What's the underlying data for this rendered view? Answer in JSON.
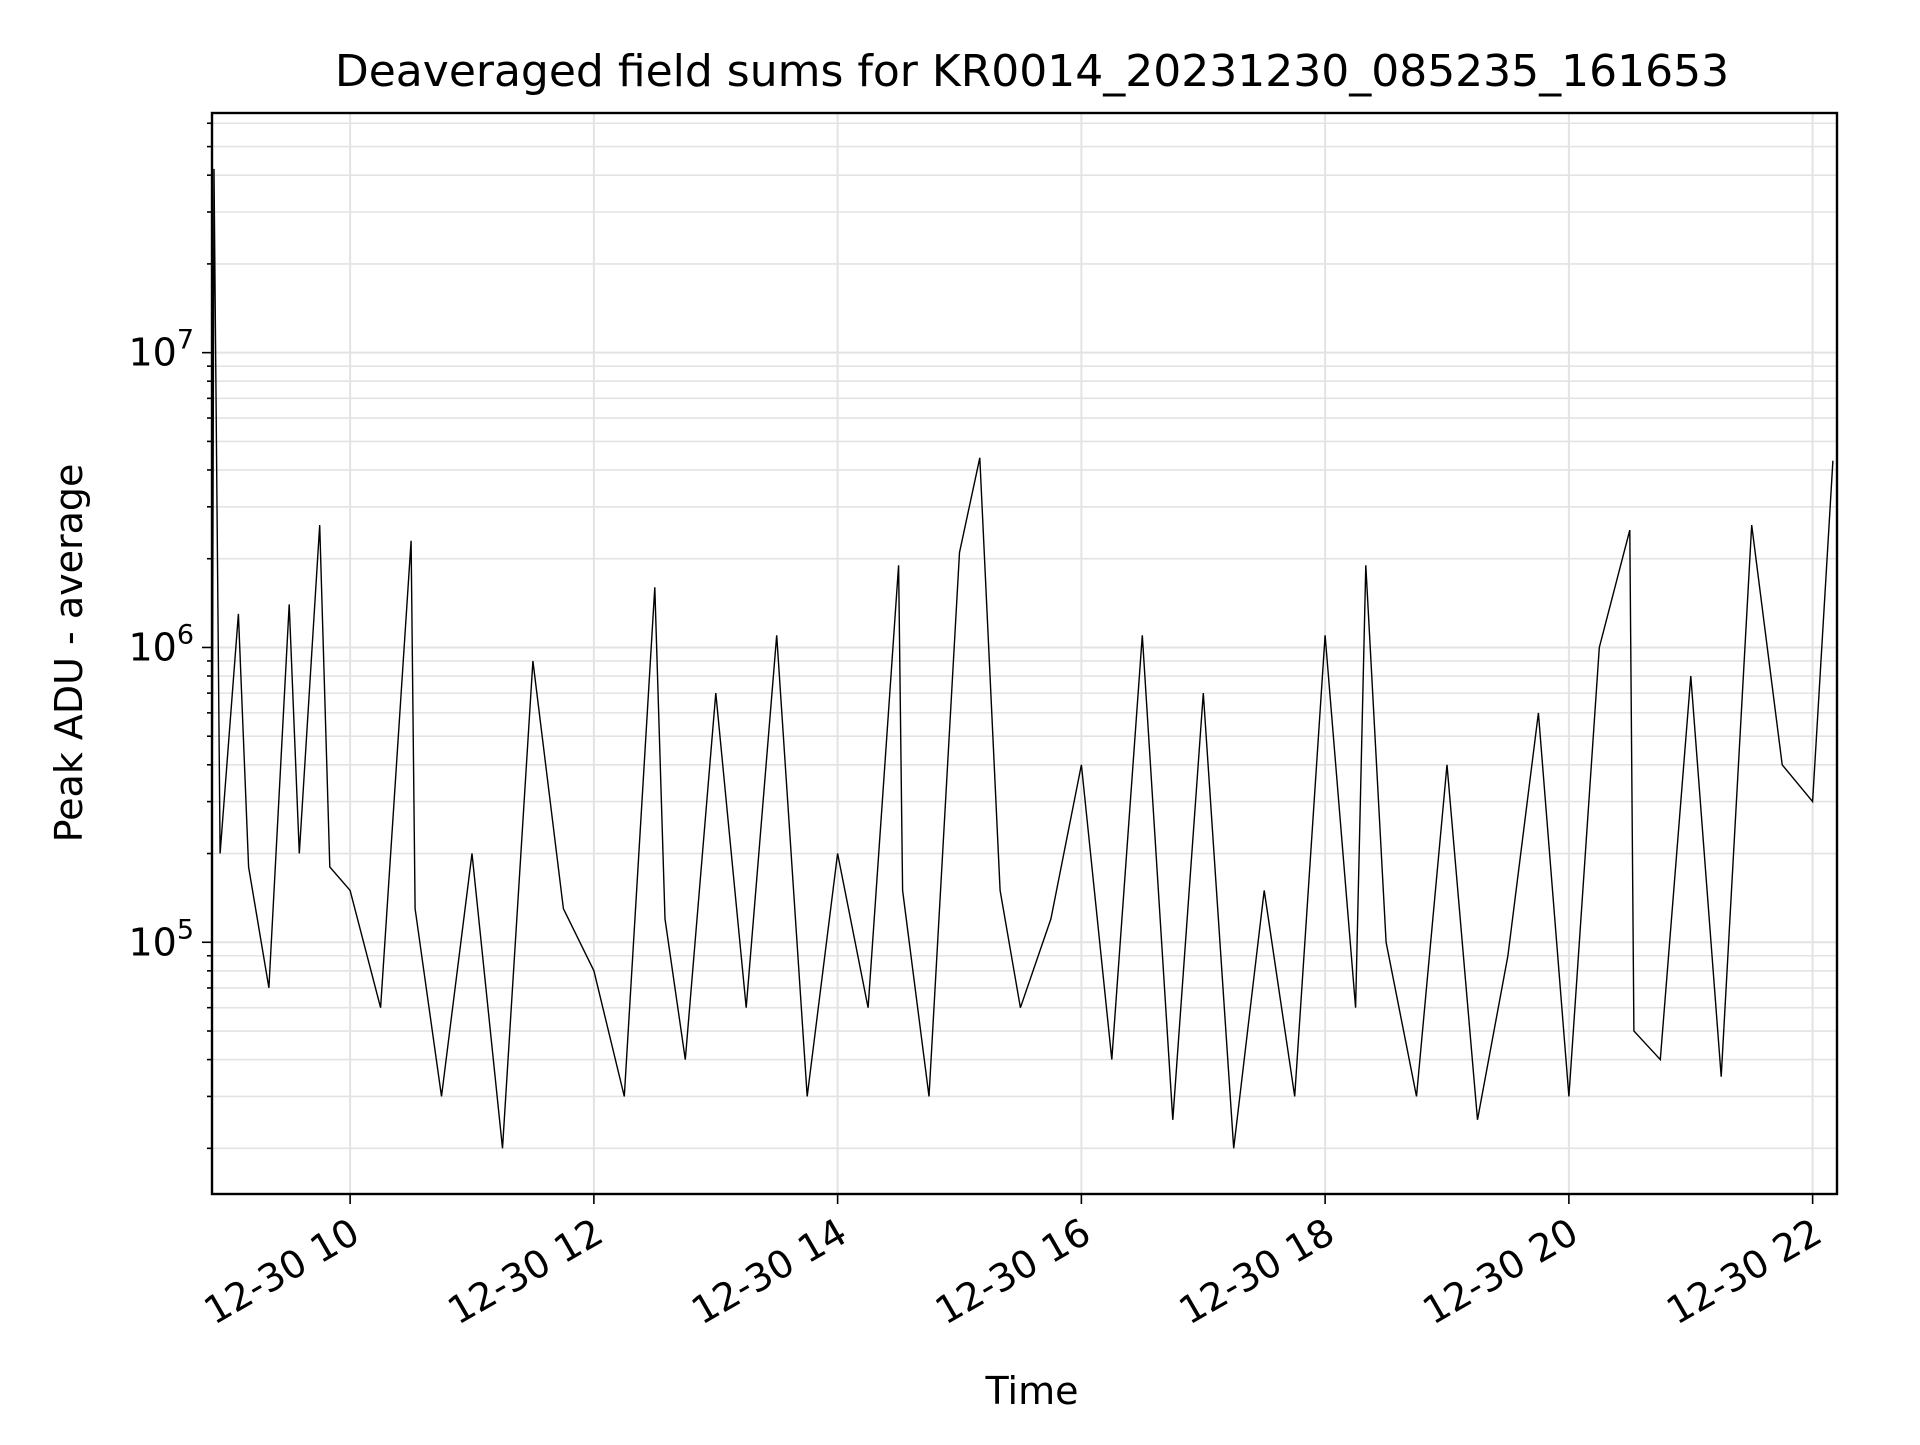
{
  "chart_data": {
    "type": "line",
    "title": "Deaveraged field sums for KR0014_20231230_085235_161653",
    "xlabel": "Time",
    "ylabel": "Peak ADU - average",
    "yscale": "log",
    "grid": true,
    "xlim": [
      "2023-12-30 08:52",
      "2023-12-30 22:12"
    ],
    "ylim": [
      14000,
      65000000
    ],
    "x_ticks": [
      {
        "value": "2023-12-30 10:00",
        "label": "12-30 10"
      },
      {
        "value": "2023-12-30 12:00",
        "label": "12-30 12"
      },
      {
        "value": "2023-12-30 14:00",
        "label": "12-30 14"
      },
      {
        "value": "2023-12-30 16:00",
        "label": "12-30 16"
      },
      {
        "value": "2023-12-30 18:00",
        "label": "12-30 18"
      },
      {
        "value": "2023-12-30 20:00",
        "label": "12-30 20"
      },
      {
        "value": "2023-12-30 22:00",
        "label": "12-30 22"
      }
    ],
    "y_ticks": [
      {
        "value": 100000,
        "base": "10",
        "exp": "5"
      },
      {
        "value": 1000000,
        "base": "10",
        "exp": "6"
      },
      {
        "value": 10000000,
        "base": "10",
        "exp": "7"
      }
    ],
    "series": [
      {
        "color": "#000000",
        "x": [
          "2023-12-30 08:52",
          "2023-12-30 08:53",
          "2023-12-30 08:56",
          "2023-12-30 09:05",
          "2023-12-30 09:10",
          "2023-12-30 09:20",
          "2023-12-30 09:30",
          "2023-12-30 09:35",
          "2023-12-30 09:45",
          "2023-12-30 09:50",
          "2023-12-30 10:00",
          "2023-12-30 10:15",
          "2023-12-30 10:30",
          "2023-12-30 10:32",
          "2023-12-30 10:45",
          "2023-12-30 11:00",
          "2023-12-30 11:15",
          "2023-12-30 11:30",
          "2023-12-30 11:45",
          "2023-12-30 12:00",
          "2023-12-30 12:15",
          "2023-12-30 12:30",
          "2023-12-30 12:35",
          "2023-12-30 12:45",
          "2023-12-30 13:00",
          "2023-12-30 13:15",
          "2023-12-30 13:30",
          "2023-12-30 13:45",
          "2023-12-30 14:00",
          "2023-12-30 14:15",
          "2023-12-30 14:30",
          "2023-12-30 14:32",
          "2023-12-30 14:45",
          "2023-12-30 15:00",
          "2023-12-30 15:10",
          "2023-12-30 15:20",
          "2023-12-30 15:30",
          "2023-12-30 15:45",
          "2023-12-30 16:00",
          "2023-12-30 16:15",
          "2023-12-30 16:30",
          "2023-12-30 16:45",
          "2023-12-30 17:00",
          "2023-12-30 17:15",
          "2023-12-30 17:30",
          "2023-12-30 17:45",
          "2023-12-30 18:00",
          "2023-12-30 18:15",
          "2023-12-30 18:20",
          "2023-12-30 18:30",
          "2023-12-30 18:45",
          "2023-12-30 19:00",
          "2023-12-30 19:15",
          "2023-12-30 19:30",
          "2023-12-30 19:45",
          "2023-12-30 20:00",
          "2023-12-30 20:15",
          "2023-12-30 20:30",
          "2023-12-30 20:32",
          "2023-12-30 20:45",
          "2023-12-30 21:00",
          "2023-12-30 21:15",
          "2023-12-30 21:30",
          "2023-12-30 21:45",
          "2023-12-30 22:00",
          "2023-12-30 22:10"
        ],
        "y": [
          180000,
          42000000,
          200000,
          1300000,
          180000,
          70000,
          1400000,
          200000,
          2600000,
          180000,
          150000,
          60000,
          2300000,
          130000,
          30000,
          200000,
          20000,
          900000,
          130000,
          80000,
          30000,
          1600000,
          120000,
          40000,
          700000,
          60000,
          1100000,
          30000,
          200000,
          60000,
          1900000,
          150000,
          30000,
          2100000,
          4400000,
          150000,
          60000,
          120000,
          400000,
          40000,
          1100000,
          25000,
          700000,
          20000,
          150000,
          30000,
          1100000,
          60000,
          1900000,
          100000,
          30000,
          400000,
          25000,
          90000,
          600000,
          30000,
          1000000,
          2500000,
          50000,
          40000,
          800000,
          35000,
          2600000,
          400000,
          300000,
          4300000
        ]
      }
    ]
  }
}
